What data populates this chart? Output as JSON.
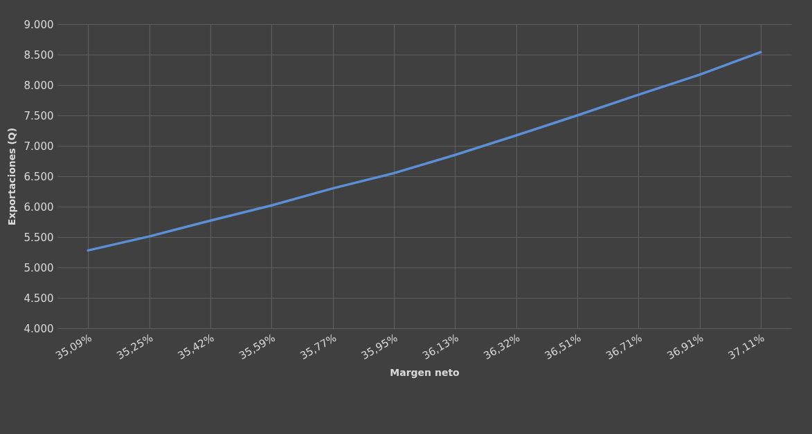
{
  "chart_data": {
    "type": "line",
    "xlabel": "Margen neto",
    "ylabel": "Exportaciones (Q)",
    "categories": [
      "35,09%",
      "35,25%",
      "35,42%",
      "35,59%",
      "35,77%",
      "35,95%",
      "36,13%",
      "36,32%",
      "36,51%",
      "36,71%",
      "36,91%",
      "37,11%"
    ],
    "series": [
      {
        "color": "#5b8fd6",
        "values": [
          5280,
          5510,
          5770,
          6020,
          6300,
          6550,
          6850,
          7170,
          7500,
          7840,
          8170,
          8540
        ]
      }
    ],
    "ylim": [
      4000,
      9000
    ],
    "yticks": [
      {
        "value": 4000,
        "label": "4.000"
      },
      {
        "value": 4500,
        "label": "4.500"
      },
      {
        "value": 5000,
        "label": "5.000"
      },
      {
        "value": 5500,
        "label": "5.500"
      },
      {
        "value": 6000,
        "label": "6.000"
      },
      {
        "value": 6500,
        "label": "6.500"
      },
      {
        "value": 7000,
        "label": "7.000"
      },
      {
        "value": 7500,
        "label": "7.500"
      },
      {
        "value": 8000,
        "label": "8.000"
      },
      {
        "value": 8500,
        "label": "8.500"
      },
      {
        "value": 9000,
        "label": "9.000"
      }
    ],
    "grid": true,
    "marker": "none",
    "line_style": "solid"
  }
}
